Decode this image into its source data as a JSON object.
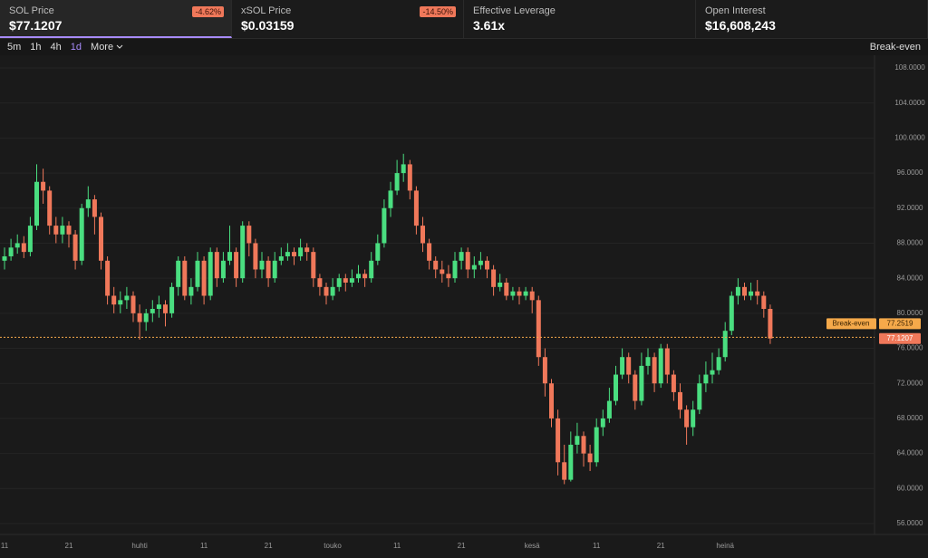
{
  "header": {
    "stats": [
      {
        "label": "SOL Price",
        "value": "$77.1207",
        "change": "-4.62%"
      },
      {
        "label": "xSOL Price",
        "value": "$0.03159",
        "change": "-14.50%"
      },
      {
        "label": "Effective Leverage",
        "value": "3.61x"
      },
      {
        "label": "Open Interest",
        "value": "$16,608,243"
      }
    ]
  },
  "toolbar": {
    "intervals": [
      "5m",
      "1h",
      "4h",
      "1d"
    ],
    "more": "More",
    "right": "Break-even"
  },
  "chart_data": {
    "type": "candlestick",
    "categories": [
      "11",
      null,
      null,
      null,
      null,
      null,
      null,
      null,
      null,
      null,
      "21",
      null,
      null,
      null,
      null,
      null,
      null,
      null,
      null,
      null,
      null,
      "huhti",
      null,
      null,
      null,
      null,
      null,
      null,
      null,
      null,
      null,
      "11",
      null,
      null,
      null,
      null,
      null,
      null,
      null,
      null,
      null,
      "21",
      null,
      null,
      null,
      null,
      null,
      null,
      null,
      null,
      null,
      "touko",
      null,
      null,
      null,
      null,
      null,
      null,
      null,
      null,
      null,
      "11",
      null,
      null,
      null,
      null,
      null,
      null,
      null,
      null,
      null,
      "21",
      null,
      null,
      null,
      null,
      null,
      null,
      null,
      null,
      null,
      null,
      "kesä",
      null,
      null,
      null,
      null,
      null,
      null,
      null,
      null,
      null,
      "11",
      null,
      null,
      null,
      null,
      null,
      null,
      null,
      null,
      null,
      "21",
      null,
      null,
      null,
      null,
      null,
      null,
      null,
      null,
      null,
      "heinä",
      null,
      null,
      null,
      null,
      null,
      null,
      null
    ],
    "open": [
      86,
      86.5,
      87.5,
      88,
      87,
      90,
      95,
      94,
      90,
      89,
      90,
      89,
      86,
      92,
      93,
      91,
      86,
      82,
      81,
      81.5,
      82,
      80,
      79,
      80,
      80.5,
      81,
      80,
      83,
      86,
      82,
      83,
      86,
      82,
      87,
      84,
      86,
      87,
      84,
      90,
      88,
      85,
      86,
      84,
      86,
      86.5,
      87,
      86.5,
      87.5,
      87,
      84,
      83,
      82,
      83,
      84,
      83.5,
      84,
      84.5,
      84,
      86,
      88,
      92,
      94,
      96,
      97,
      94,
      90,
      88,
      86,
      85,
      84.5,
      84,
      86,
      87,
      85,
      85.5,
      86,
      85,
      83,
      83.5,
      82,
      82.5,
      82,
      82.5,
      81.5,
      75,
      72,
      68,
      63,
      61,
      65,
      66,
      64,
      63,
      67,
      68,
      70,
      73,
      75,
      73,
      70,
      74,
      75,
      72,
      76,
      73,
      71,
      69,
      67,
      69,
      72,
      73,
      73.5,
      75,
      78,
      82,
      83,
      82,
      82.5,
      82,
      80.5
    ],
    "high": [
      87.5,
      88.5,
      89,
      88.8,
      91,
      97,
      96.5,
      94.5,
      91,
      91,
      90.5,
      89.5,
      92.5,
      94.5,
      93.5,
      91.5,
      86.5,
      83,
      82.5,
      83,
      82.5,
      81,
      80.5,
      81.5,
      82,
      81.5,
      83.5,
      86.5,
      86.5,
      84,
      87,
      86.5,
      87.5,
      87.5,
      87,
      90,
      87.5,
      90.5,
      90.5,
      88.5,
      87,
      86.5,
      87,
      87.5,
      88,
      87.5,
      88.5,
      88,
      87.5,
      84.5,
      83.5,
      84,
      84.5,
      84.5,
      85,
      85.5,
      85,
      87,
      89,
      93,
      95,
      97.5,
      98.2,
      97.5,
      94.5,
      91,
      88.5,
      86.5,
      86,
      85.5,
      87,
      87.5,
      87.5,
      86.5,
      87,
      86.5,
      85.5,
      84.5,
      84,
      83,
      83,
      83,
      83,
      82,
      76,
      72.5,
      69,
      65,
      66.5,
      67.5,
      66.5,
      65,
      68,
      69,
      71.5,
      74,
      76,
      75.5,
      73.5,
      75.5,
      76,
      75.5,
      76.5,
      76.5,
      73.5,
      72,
      69.5,
      70,
      73,
      74.5,
      75.5,
      76,
      79,
      82.5,
      84,
      83.5,
      83.5,
      83.8,
      82.5,
      81
    ],
    "low": [
      85,
      86,
      86.8,
      86.3,
      86.5,
      89.5,
      92.5,
      89,
      88,
      88,
      87.5,
      85,
      85.5,
      91,
      89,
      85,
      81,
      80,
      80,
      80.5,
      79,
      77,
      78,
      79,
      79.5,
      78.5,
      79.5,
      82,
      81.5,
      81,
      82.5,
      81,
      81.5,
      83,
      83.5,
      85.5,
      83,
      83.5,
      86.5,
      84,
      84,
      83,
      83.5,
      85.5,
      86,
      85.5,
      86,
      86,
      83,
      82,
      81,
      81.5,
      82.5,
      82.5,
      83,
      83.5,
      83,
      83.5,
      85.5,
      87.5,
      91,
      93.5,
      95,
      93,
      89,
      87,
      85,
      84,
      83.5,
      83,
      83.5,
      85,
      84,
      84,
      85,
      84,
      82,
      82.5,
      81.5,
      81.5,
      81,
      81.5,
      80,
      74,
      70.5,
      67,
      61.5,
      60.5,
      60.8,
      64,
      62.5,
      62,
      62.5,
      66,
      67.5,
      69.5,
      72.5,
      72,
      69,
      69.5,
      73,
      71,
      71.5,
      72,
      70,
      68,
      65,
      66,
      68.5,
      71,
      72,
      73,
      74.5,
      77.5,
      81,
      81.5,
      81.5,
      81,
      79.5,
      76.5
    ],
    "close": [
      86.5,
      87.5,
      88,
      87,
      90,
      95,
      94,
      90,
      89,
      90,
      89,
      86,
      92,
      93,
      91,
      86,
      82,
      81,
      81.5,
      82,
      80,
      79,
      80,
      80.5,
      81,
      80,
      83,
      86,
      82,
      83,
      86,
      82,
      87,
      84,
      86,
      87,
      84,
      90,
      88,
      85,
      86,
      84,
      86,
      86.5,
      87,
      86.5,
      87.5,
      87,
      84,
      83,
      82,
      83,
      84,
      83.5,
      84,
      84.5,
      84,
      86,
      88,
      92,
      94,
      96,
      97,
      94,
      90,
      88,
      86,
      85,
      84.5,
      84,
      86,
      87,
      85,
      85.5,
      86,
      85,
      83,
      83.5,
      82,
      82.5,
      82,
      82.5,
      81.5,
      75,
      72,
      68,
      63,
      61,
      65,
      66,
      64,
      63,
      67,
      68,
      70,
      73,
      75,
      73,
      70,
      74,
      75,
      72,
      76,
      73,
      71,
      69,
      67,
      69,
      72,
      73,
      73.5,
      75,
      78,
      82,
      83,
      82,
      82.5,
      82,
      80.5,
      77.1207
    ],
    "up_color": "#4ade80",
    "down_color": "#f0785a",
    "ylim": [
      54.76,
      109.55
    ],
    "yticks": [
      {
        "value": 56,
        "label": "56.0000"
      },
      {
        "value": 60,
        "label": "60.0000"
      },
      {
        "value": 64,
        "label": "64.0000"
      },
      {
        "value": 68,
        "label": "68.0000"
      },
      {
        "value": 72,
        "label": "72.0000"
      },
      {
        "value": 76,
        "label": "76.0000"
      },
      {
        "value": 80,
        "label": "80.0000"
      },
      {
        "value": 84,
        "label": "84.0000"
      },
      {
        "value": 88,
        "label": "88.0000"
      },
      {
        "value": 92,
        "label": "92.0000"
      },
      {
        "value": 96,
        "label": "96.0000"
      },
      {
        "value": 100,
        "label": "100.0000"
      },
      {
        "value": 104,
        "label": "104.0000"
      },
      {
        "value": 108,
        "label": "108.0000"
      }
    ],
    "grid": true,
    "price_line": {
      "label": "Break-even",
      "value": 77.2519,
      "color": "#f5a94a"
    }
  }
}
